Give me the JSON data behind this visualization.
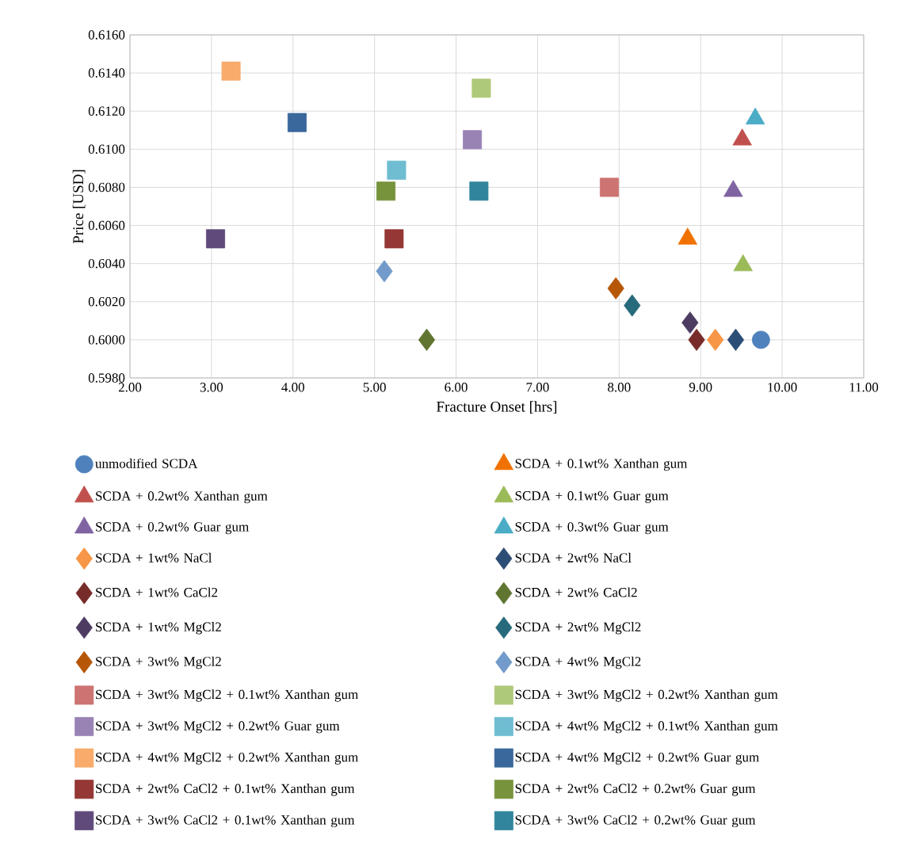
{
  "chart_data": {
    "type": "scatter",
    "xlabel": "Fracture Onset [hrs]",
    "ylabel": "Price [USD]",
    "xlim": [
      2,
      11
    ],
    "ylim": [
      0.598,
      0.616
    ],
    "xticks": [
      {
        "value": 2,
        "label": "2.00"
      },
      {
        "value": 3,
        "label": "3.00"
      },
      {
        "value": 4,
        "label": "4.00"
      },
      {
        "value": 5,
        "label": "5.00"
      },
      {
        "value": 6,
        "label": "6.00"
      },
      {
        "value": 7,
        "label": "7.00"
      },
      {
        "value": 8,
        "label": "8.00"
      },
      {
        "value": 9,
        "label": "9.00"
      },
      {
        "value": 10,
        "label": "10.00"
      },
      {
        "value": 11,
        "label": "11.00"
      }
    ],
    "yticks": [
      {
        "value": 0.598,
        "label": "0.5980"
      },
      {
        "value": 0.6,
        "label": "0.6000"
      },
      {
        "value": 0.602,
        "label": "0.6020"
      },
      {
        "value": 0.604,
        "label": "0.6040"
      },
      {
        "value": 0.606,
        "label": "0.6060"
      },
      {
        "value": 0.608,
        "label": "0.6080"
      },
      {
        "value": 0.61,
        "label": "0.6100"
      },
      {
        "value": 0.612,
        "label": "0.6120"
      },
      {
        "value": 0.614,
        "label": "0.6140"
      },
      {
        "value": 0.616,
        "label": "0.6160"
      }
    ],
    "grid": true,
    "legend": "bottom",
    "series": [
      {
        "name": "unmodified SCDA",
        "color": "#4f81bd",
        "marker": "circle",
        "x": [
          9.74
        ],
        "values": [
          0.6
        ]
      },
      {
        "name": "SCDA + 0.1wt% Xanthan gum",
        "color": "#f07203",
        "marker": "triangle",
        "x": [
          8.84
        ],
        "values": [
          0.6053
        ]
      },
      {
        "name": "SCDA + 0.2wt% Xanthan gum",
        "color": "#c0504d",
        "marker": "triangle",
        "x": [
          9.51
        ],
        "values": [
          0.6105
        ]
      },
      {
        "name": "SCDA + 0.1wt% Guar gum",
        "color": "#9bbb59",
        "marker": "triangle",
        "x": [
          9.52
        ],
        "values": [
          0.6039
        ]
      },
      {
        "name": "SCDA + 0.2wt% Guar gum",
        "color": "#8064a2",
        "marker": "triangle",
        "x": [
          9.4
        ],
        "values": [
          0.6078
        ]
      },
      {
        "name": "SCDA + 0.3wt% Guar gum",
        "color": "#4bacc6",
        "marker": "triangle",
        "x": [
          9.67
        ],
        "values": [
          0.6116
        ]
      },
      {
        "name": "SCDA + 1wt% NaCl",
        "color": "#f79646",
        "marker": "diamond",
        "x": [
          9.18
        ],
        "values": [
          0.6
        ]
      },
      {
        "name": "SCDA + 2wt% NaCl",
        "color": "#2c4d75",
        "marker": "diamond",
        "x": [
          9.43
        ],
        "values": [
          0.6
        ]
      },
      {
        "name": "SCDA + 1wt% CaCl2",
        "color": "#772c2a",
        "marker": "diamond",
        "x": [
          8.95
        ],
        "values": [
          0.6
        ]
      },
      {
        "name": "SCDA + 2wt% CaCl2",
        "color": "#5f7530",
        "marker": "diamond",
        "x": [
          5.64
        ],
        "values": [
          0.6
        ]
      },
      {
        "name": "SCDA + 1wt% MgCl2",
        "color": "#4d3b62",
        "marker": "diamond",
        "x": [
          8.87
        ],
        "values": [
          0.6009
        ]
      },
      {
        "name": "SCDA + 2wt% MgCl2",
        "color": "#276a7c",
        "marker": "diamond",
        "x": [
          8.16
        ],
        "values": [
          0.6018
        ]
      },
      {
        "name": "SCDA + 3wt% MgCl2",
        "color": "#b65708",
        "marker": "diamond",
        "x": [
          7.96
        ],
        "values": [
          0.6027
        ]
      },
      {
        "name": "SCDA + 4wt% MgCl2",
        "color": "#729aca",
        "marker": "diamond",
        "x": [
          5.12
        ],
        "values": [
          0.6036
        ]
      },
      {
        "name": "SCDA + 3wt% MgCl2 + 0.1wt% Xanthan gum",
        "color": "#cd7371",
        "marker": "square",
        "x": [
          7.88
        ],
        "values": [
          0.608
        ]
      },
      {
        "name": "SCDA + 3wt% MgCl2 + 0.2wt% Xanthan gum",
        "color": "#afc97a",
        "marker": "square",
        "x": [
          6.31
        ],
        "values": [
          0.6132
        ]
      },
      {
        "name": "SCDA + 3wt% MgCl2 + 0.2wt% Guar gum",
        "color": "#9983b5",
        "marker": "square",
        "x": [
          6.2
        ],
        "values": [
          0.6105
        ]
      },
      {
        "name": "SCDA + 4wt% MgCl2 + 0.1wt% Xanthan gum",
        "color": "#6fbdd1",
        "marker": "square",
        "x": [
          5.27
        ],
        "values": [
          0.6089
        ]
      },
      {
        "name": "SCDA + 4wt% MgCl2 + 0.2wt% Xanthan gum",
        "color": "#f9ab6b",
        "marker": "square",
        "x": [
          3.24
        ],
        "values": [
          0.6141
        ]
      },
      {
        "name": "SCDA + 4wt% MgCl2 + 0.2wt% Guar gum",
        "color": "#3a679c",
        "marker": "square",
        "x": [
          4.05
        ],
        "values": [
          0.6114
        ]
      },
      {
        "name": "SCDA + 2wt% CaCl2 + 0.1wt% Xanthan gum",
        "color": "#953735",
        "marker": "square",
        "x": [
          5.24
        ],
        "values": [
          0.6053
        ]
      },
      {
        "name": "SCDA + 2wt% CaCl2 + 0.2wt% Guar gum",
        "color": "#77933c",
        "marker": "square",
        "x": [
          5.14
        ],
        "values": [
          0.6078
        ]
      },
      {
        "name": "SCDA + 3wt% CaCl2 + 0.1wt% Xanthan gum",
        "color": "#604a7b",
        "marker": "square",
        "x": [
          3.05
        ],
        "values": [
          0.6053
        ]
      },
      {
        "name": "SCDA + 3wt% CaCl2 + 0.2wt% Guar gum",
        "color": "#31859c",
        "marker": "square",
        "x": [
          6.28
        ],
        "values": [
          0.6078
        ]
      }
    ]
  }
}
